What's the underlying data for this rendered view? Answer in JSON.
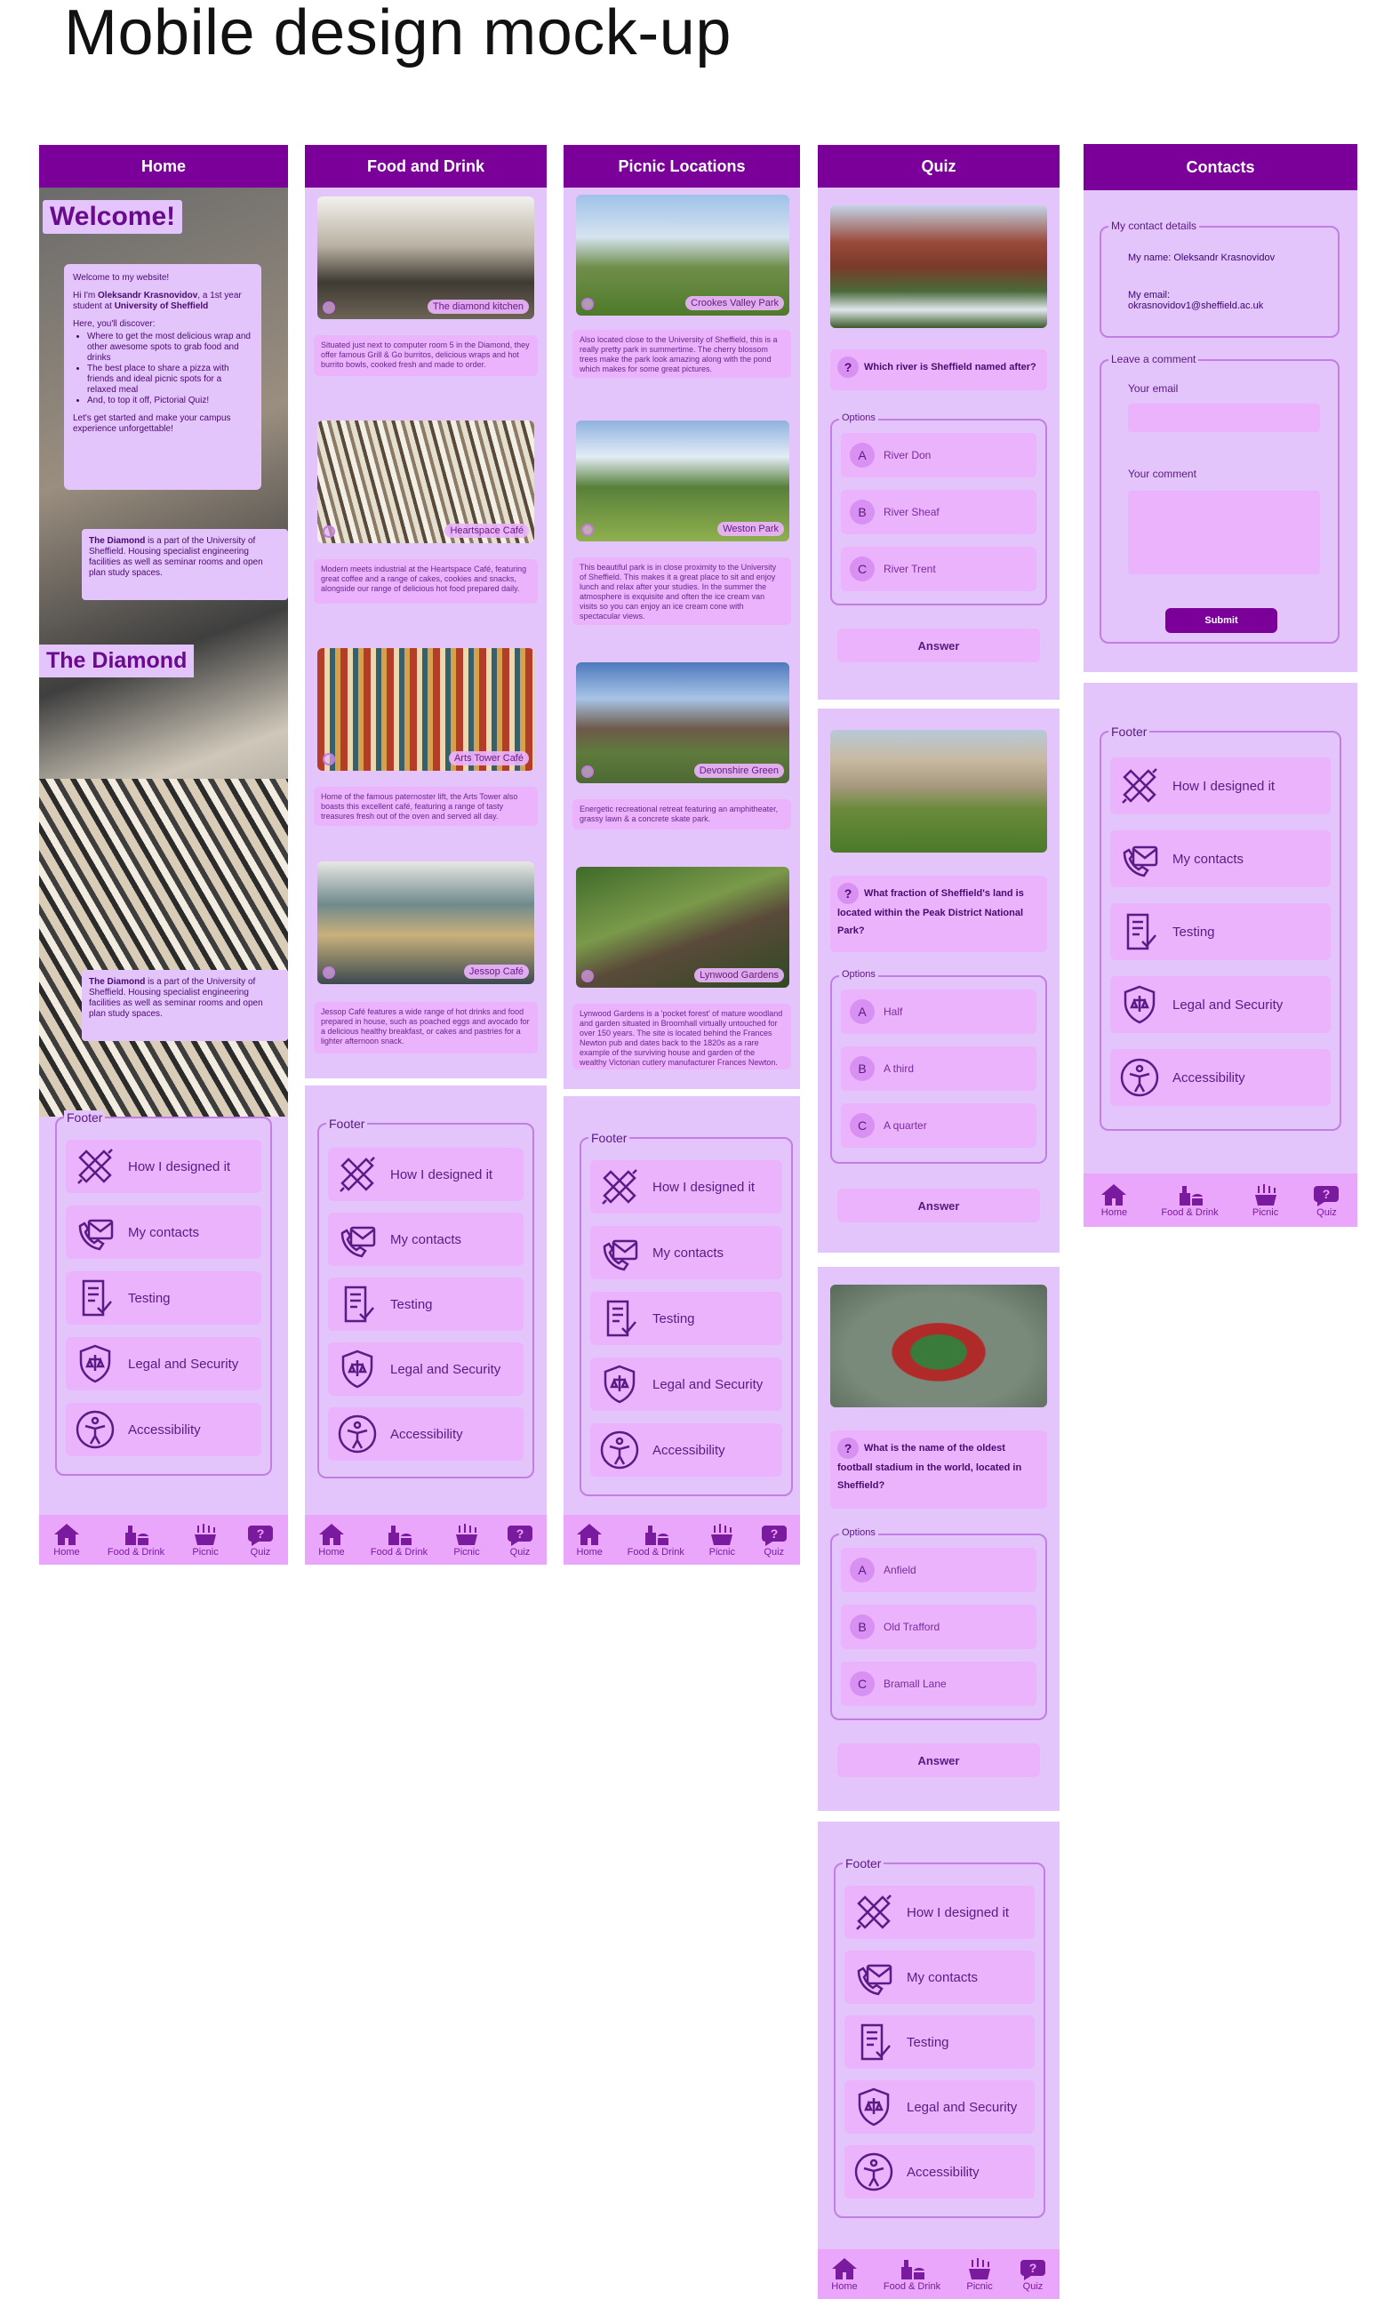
{
  "page_title": "Mobile design mock-up",
  "nav": {
    "home": "Home",
    "food": "Food & Drink",
    "picnic": "Picnic",
    "quiz": "Quiz"
  },
  "footer": {
    "legend": "Footer",
    "items": [
      "How I designed it",
      "My contacts",
      "Testing",
      "Legal and Security",
      "Accessibility"
    ]
  },
  "home": {
    "header": "Home",
    "welcome": "Welcome!",
    "intro_line1": "Welcome to my website!",
    "intro_line2a": "Hi I'm ",
    "intro_name": "Oleksandr Krasnovidov",
    "intro_line2b": ", a 1st year student at ",
    "intro_uni": "University of Sheffield",
    "discover": "Here, you'll discover:",
    "bullets": [
      "Where to get the most delicious wrap and other awesome spots to grab food and drinks",
      "The best place to share a pizza with friends and ideal picnic spots for a relaxed meal",
      "And, to top it off, Pictorial Quiz!"
    ],
    "outro": "Let's get started and make your campus experience unforgettable!",
    "diamond_bold": "The Diamond",
    "diamond_text": " is a part of the University of Sheffield. Housing specialist engineering facilities as well as seminar rooms and open plan study spaces.",
    "diamond_title": "The Diamond"
  },
  "food": {
    "header": "Food and Drink",
    "cards": [
      {
        "caption": "The diamond kitchen",
        "text": "Situated just next to computer room 5 in the Diamond, they offer famous Grill & Go burritos, delicious wraps and hot burrito bowls, cooked fresh and made to order."
      },
      {
        "caption": "Heartspace Café",
        "text": "Modern meets industrial at the Heartspace Café, featuring great coffee and a range of cakes, cookies and snacks, alongside our range of delicious hot food prepared daily."
      },
      {
        "caption": "Arts Tower Café",
        "text": "Home of the famous paternoster lift, the Arts Tower also boasts this excellent café, featuring a range of tasty treasures fresh out of the oven and served all day."
      },
      {
        "caption": "Jessop Café",
        "text": "Jessop Café features a wide range of hot drinks and food prepared in house, such as poached eggs and avocado for a delicious healthy breakfast, or cakes and pastries for a lighter afternoon snack."
      }
    ]
  },
  "picnic": {
    "header": "Picnic Locations",
    "cards": [
      {
        "caption": "Crookes Valley Park",
        "text": "Also located close to the University of Sheffield, this is a really pretty park in summertime. The cherry blossom trees make the park look amazing along with the pond which makes for some great pictures."
      },
      {
        "caption": "Weston Park",
        "text": "This beautiful park is in close proximity to the University of Sheffield. This makes it a great place to sit and enjoy lunch and relax after your studies. In the summer the atmosphere is exquisite and often the ice cream van visits so you can enjoy an ice cream cone with spectacular views."
      },
      {
        "caption": "Devonshire Green",
        "text": "Energetic recreational retreat featuring an amphitheater, grassy lawn & a concrete skate park."
      },
      {
        "caption": "Lynwood Gardens",
        "text": "Lynwood Gardens is a 'pocket forest' of mature woodland and garden situated in Broomhall virtually untouched for over 150 years. The site is located behind the Frances Newton pub and dates back to the 1820s as a rare example of the surviving house and garden of the wealthy Victorian cutlery manufacturer Frances Newton."
      }
    ]
  },
  "quiz": {
    "header": "Quiz",
    "options_legend": "Options",
    "answer": "Answer",
    "questions": [
      {
        "q": "Which river is Sheffield named after?",
        "options": [
          "River Don",
          "River Sheaf",
          "River Trent"
        ]
      },
      {
        "q": "What fraction of Sheffield's land is located within the Peak District National Park?",
        "options": [
          "Half",
          "A third",
          "A quarter"
        ]
      },
      {
        "q": "What is the name of the oldest football stadium in the world, located in Sheffield?",
        "options": [
          "Anfield",
          "Old Trafford",
          "Bramall Lane"
        ]
      }
    ]
  },
  "contacts": {
    "header": "Contacts",
    "details_legend": "My contact details",
    "name": "My name: Oleksandr Krasnovidov",
    "email_label": "My email:",
    "email": "okrasnovidov1@sheffield.ac.uk",
    "comment_legend": "Leave a comment",
    "your_email": "Your email",
    "your_comment": "Your comment",
    "submit": "Submit"
  }
}
